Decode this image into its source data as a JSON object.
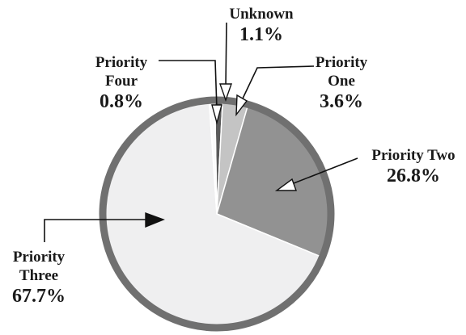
{
  "chart_data": {
    "type": "pie",
    "categories": [
      "Unknown",
      "Priority One",
      "Priority Two",
      "Priority Three",
      "Priority Four"
    ],
    "values": [
      1.1,
      3.6,
      26.8,
      67.7,
      0.8
    ],
    "value_labels": [
      "1.1%",
      "3.6%",
      "26.8%",
      "67.7%",
      "0.8%"
    ],
    "colors": [
      "#5a5a5a",
      "#c4c4c4",
      "#929292",
      "#efeff0",
      "#fbfbfb"
    ]
  }
}
